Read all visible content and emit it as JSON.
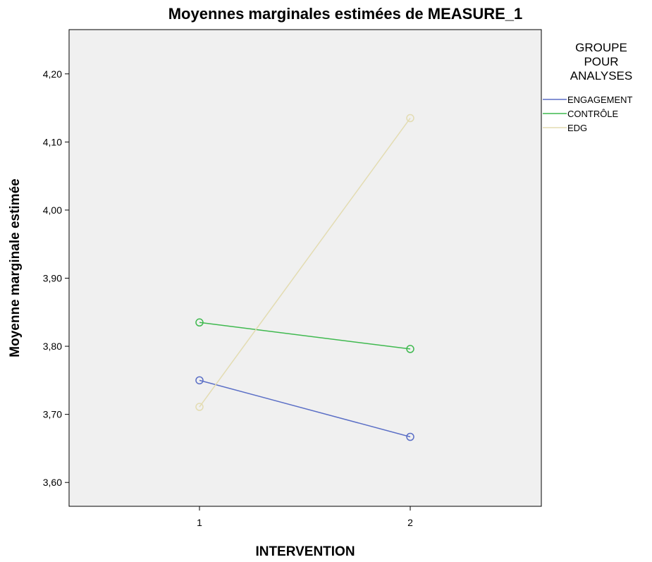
{
  "chart_data": {
    "type": "line",
    "title": "Moyennes marginales estimées de MEASURE_1",
    "xlabel": "INTERVENTION",
    "ylabel": "Moyenne marginale estimée",
    "categories": [
      "1",
      "2"
    ],
    "ylim": [
      3.565,
      4.265
    ],
    "yticks": [
      "3,60",
      "3,70",
      "3,80",
      "3,90",
      "4,00",
      "4,10",
      "4,20"
    ],
    "ytick_values": [
      3.6,
      3.7,
      3.8,
      3.9,
      4.0,
      4.1,
      4.2
    ],
    "grid": false,
    "plot_background": "#f0f0f0",
    "legend": {
      "title_lines": [
        "GROUPE",
        "POUR",
        "ANALYSES"
      ],
      "placement": "right"
    },
    "series": [
      {
        "name": "ENGAGEMENT",
        "color": "#5b6fc6",
        "values": [
          3.75,
          3.667
        ]
      },
      {
        "name": "CONTRÔLE",
        "color": "#3fb94f",
        "values": [
          3.835,
          3.796
        ]
      },
      {
        "name": "EDG",
        "color": "#e3dcb2",
        "values": [
          3.711,
          4.135
        ]
      }
    ]
  }
}
